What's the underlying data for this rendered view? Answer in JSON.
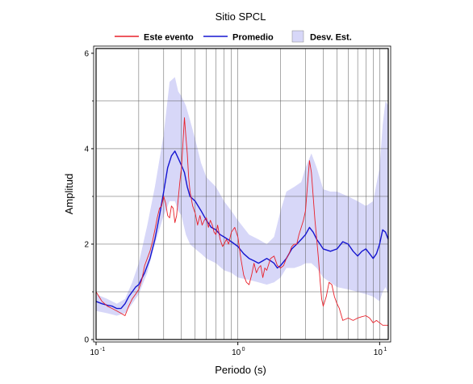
{
  "chart_data": {
    "type": "line",
    "title": "Sitio SPCL",
    "xlabel": "Periodo (s)",
    "ylabel": "Amplitud",
    "xscale": "log",
    "xlim": [
      0.1,
      11.5
    ],
    "ylim": [
      0,
      6.1
    ],
    "grid": true,
    "legend_position": "top",
    "x_ticks": [
      {
        "value": 0.1,
        "base": "10",
        "exp": "-1"
      },
      {
        "value": 1,
        "base": "10",
        "exp": "0"
      },
      {
        "value": 10,
        "base": "10",
        "exp": "1"
      }
    ],
    "y_ticks": [
      0,
      2,
      4,
      6
    ],
    "legend": [
      {
        "label": "Este evento",
        "kind": "line",
        "color": "#e8202a"
      },
      {
        "label": "Promedio",
        "kind": "line",
        "color": "#1515d0"
      },
      {
        "label": "Desv. Est.",
        "kind": "band",
        "color": "#d7d7f8"
      }
    ],
    "band": {
      "name": "Desv. Est.",
      "color": "#d7d7f8",
      "x": [
        0.1,
        0.12,
        0.14,
        0.16,
        0.18,
        0.2,
        0.23,
        0.26,
        0.3,
        0.33,
        0.36,
        0.38,
        0.4,
        0.43,
        0.46,
        0.5,
        0.55,
        0.6,
        0.7,
        0.8,
        0.9,
        1.0,
        1.2,
        1.4,
        1.6,
        1.8,
        2.0,
        2.2,
        2.5,
        2.8,
        3.0,
        3.3,
        3.6,
        4.0,
        4.5,
        5.0,
        6.0,
        7.0,
        8.0,
        9.0,
        10.0,
        10.5,
        11.0,
        11.5
      ],
      "upper": [
        0.95,
        0.85,
        0.75,
        0.85,
        1.2,
        1.6,
        2.4,
        3.2,
        4.3,
        5.4,
        5.5,
        5.2,
        5.1,
        4.9,
        4.6,
        4.2,
        3.7,
        3.4,
        3.2,
        2.9,
        2.7,
        2.5,
        2.2,
        2.1,
        2.0,
        2.15,
        2.7,
        3.1,
        3.2,
        3.3,
        3.6,
        3.9,
        3.6,
        3.15,
        3.1,
        3.1,
        3.0,
        2.9,
        2.8,
        2.9,
        3.6,
        4.5,
        5.0,
        4.9
      ],
      "lower": [
        0.6,
        0.55,
        0.5,
        0.55,
        0.75,
        0.95,
        1.4,
        2.0,
        2.6,
        2.9,
        2.9,
        2.7,
        2.6,
        2.2,
        2.0,
        1.9,
        1.8,
        1.7,
        1.6,
        1.45,
        1.4,
        1.3,
        1.25,
        1.2,
        1.15,
        1.2,
        1.3,
        1.5,
        1.5,
        1.55,
        1.6,
        1.6,
        1.5,
        1.3,
        1.2,
        1.1,
        1.05,
        1.0,
        0.95,
        0.9,
        0.8,
        1.0,
        1.1,
        0.95
      ]
    },
    "series": [
      {
        "name": "Promedio",
        "color": "#1515d0",
        "width": 1.4,
        "x": [
          0.1,
          0.11,
          0.12,
          0.13,
          0.14,
          0.15,
          0.16,
          0.17,
          0.18,
          0.19,
          0.2,
          0.22,
          0.24,
          0.26,
          0.28,
          0.3,
          0.32,
          0.34,
          0.36,
          0.38,
          0.4,
          0.42,
          0.44,
          0.46,
          0.48,
          0.5,
          0.55,
          0.6,
          0.65,
          0.7,
          0.75,
          0.8,
          0.85,
          0.9,
          0.95,
          1.0,
          1.1,
          1.2,
          1.3,
          1.4,
          1.5,
          1.6,
          1.7,
          1.8,
          1.9,
          2.0,
          2.2,
          2.4,
          2.6,
          2.8,
          3.0,
          3.2,
          3.4,
          3.6,
          3.8,
          4.0,
          4.5,
          5.0,
          5.5,
          6.0,
          6.5,
          7.0,
          7.5,
          8.0,
          8.5,
          9.0,
          9.5,
          10.0,
          10.5,
          11.0,
          11.5
        ],
        "y": [
          0.8,
          0.75,
          0.72,
          0.7,
          0.65,
          0.65,
          0.75,
          0.9,
          1.0,
          1.1,
          1.15,
          1.4,
          1.7,
          2.1,
          2.6,
          3.1,
          3.6,
          3.85,
          3.95,
          3.8,
          3.65,
          3.5,
          3.2,
          3.0,
          2.95,
          2.9,
          2.7,
          2.5,
          2.35,
          2.3,
          2.2,
          2.15,
          2.1,
          2.05,
          2.0,
          1.95,
          1.8,
          1.7,
          1.65,
          1.6,
          1.65,
          1.7,
          1.65,
          1.6,
          1.5,
          1.55,
          1.7,
          1.9,
          2.0,
          2.1,
          2.2,
          2.35,
          2.25,
          2.1,
          2.0,
          1.9,
          1.85,
          1.9,
          2.05,
          2.0,
          1.85,
          1.75,
          1.85,
          1.9,
          1.8,
          1.7,
          1.8,
          2.0,
          2.3,
          2.25,
          2.1
        ]
      },
      {
        "name": "Este evento",
        "color": "#e8202a",
        "width": 0.9,
        "x": [
          0.1,
          0.105,
          0.11,
          0.115,
          0.12,
          0.13,
          0.14,
          0.15,
          0.16,
          0.17,
          0.18,
          0.19,
          0.2,
          0.21,
          0.22,
          0.23,
          0.24,
          0.25,
          0.26,
          0.27,
          0.28,
          0.29,
          0.3,
          0.31,
          0.32,
          0.33,
          0.34,
          0.35,
          0.36,
          0.37,
          0.38,
          0.39,
          0.4,
          0.41,
          0.42,
          0.43,
          0.44,
          0.45,
          0.46,
          0.48,
          0.5,
          0.52,
          0.54,
          0.56,
          0.58,
          0.6,
          0.62,
          0.64,
          0.66,
          0.68,
          0.7,
          0.72,
          0.75,
          0.78,
          0.8,
          0.83,
          0.86,
          0.9,
          0.95,
          1.0,
          1.05,
          1.1,
          1.15,
          1.2,
          1.25,
          1.3,
          1.35,
          1.4,
          1.45,
          1.5,
          1.55,
          1.6,
          1.7,
          1.8,
          1.9,
          2.0,
          2.1,
          2.2,
          2.3,
          2.4,
          2.5,
          2.6,
          2.7,
          2.8,
          2.9,
          3.0,
          3.1,
          3.2,
          3.3,
          3.4,
          3.5,
          3.6,
          3.7,
          3.8,
          3.9,
          4.0,
          4.2,
          4.4,
          4.6,
          4.8,
          5.0,
          5.2,
          5.5,
          6.0,
          6.5,
          7.0,
          7.5,
          8.0,
          8.5,
          9.0,
          9.5,
          10.0,
          10.5,
          11.0,
          11.5
        ],
        "y": [
          1.0,
          0.9,
          0.8,
          0.75,
          0.7,
          0.65,
          0.6,
          0.55,
          0.5,
          0.7,
          0.85,
          0.95,
          1.05,
          1.25,
          1.55,
          1.7,
          1.85,
          2.05,
          2.3,
          2.55,
          2.75,
          2.8,
          3.0,
          2.85,
          2.6,
          2.55,
          2.8,
          2.75,
          2.45,
          2.6,
          2.95,
          3.3,
          3.6,
          4.1,
          4.65,
          4.25,
          3.9,
          3.4,
          3.1,
          2.8,
          2.65,
          2.4,
          2.6,
          2.4,
          2.5,
          2.55,
          2.35,
          2.5,
          2.4,
          2.25,
          2.2,
          2.4,
          2.1,
          1.95,
          2.0,
          2.1,
          2.0,
          2.25,
          2.35,
          2.15,
          1.7,
          1.35,
          1.2,
          1.15,
          1.35,
          1.6,
          1.4,
          1.5,
          1.55,
          1.3,
          1.5,
          1.45,
          1.7,
          1.75,
          1.55,
          1.5,
          1.55,
          1.7,
          1.8,
          1.95,
          2.0,
          2.0,
          2.2,
          2.35,
          2.5,
          2.7,
          3.25,
          3.75,
          3.5,
          3.0,
          2.5,
          2.1,
          1.7,
          1.25,
          0.85,
          0.7,
          0.9,
          1.2,
          1.15,
          0.9,
          0.75,
          0.65,
          0.4,
          0.45,
          0.4,
          0.45,
          0.48,
          0.5,
          0.45,
          0.35,
          0.4,
          0.35,
          0.3,
          0.3,
          0.3
        ]
      }
    ]
  }
}
